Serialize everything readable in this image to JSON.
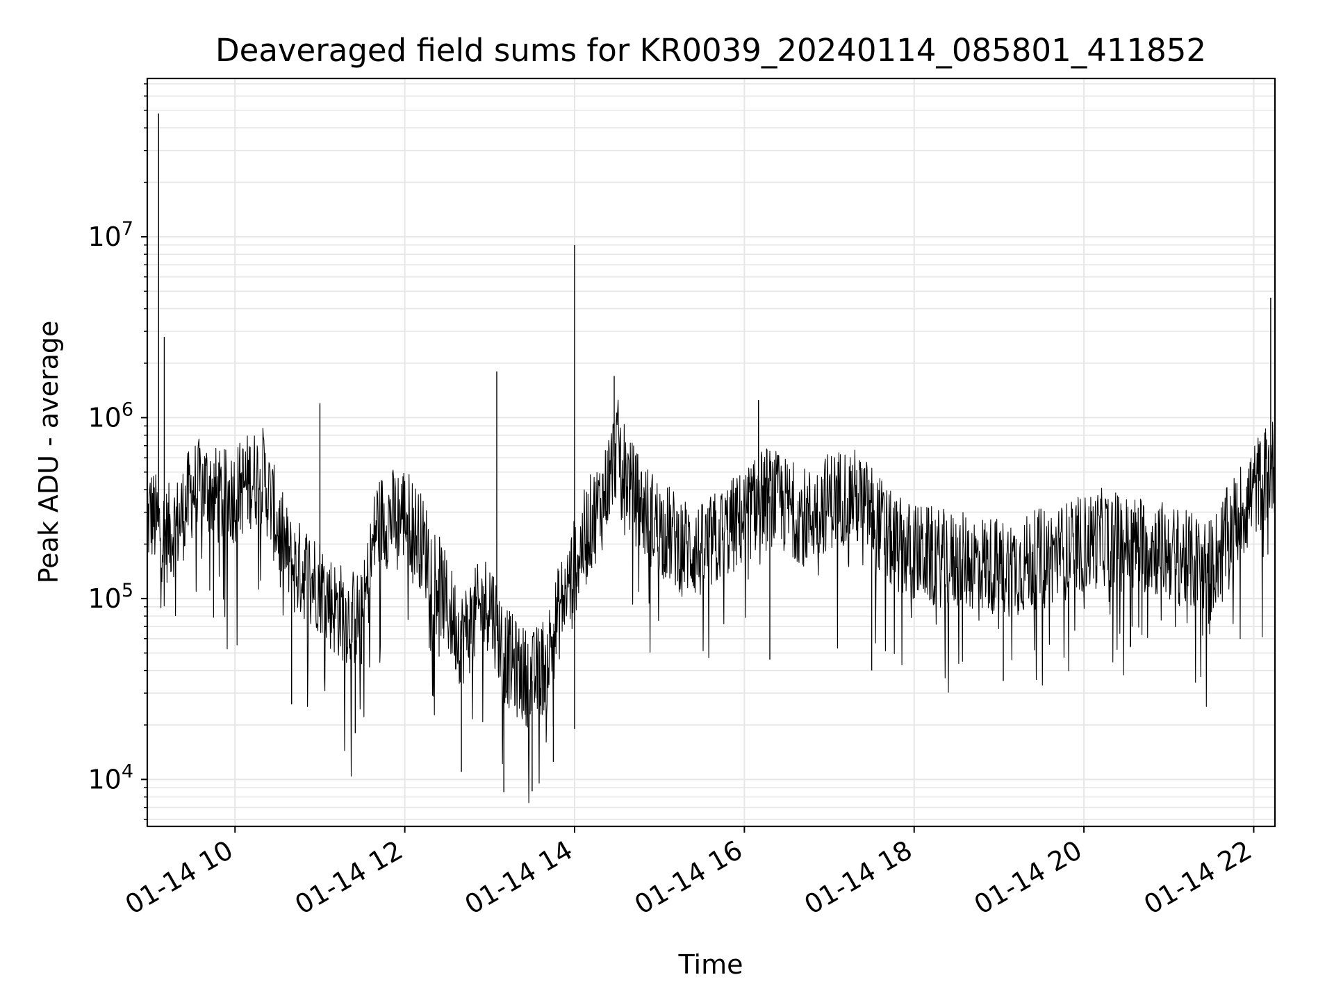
{
  "chart_data": {
    "type": "line",
    "title": "Deaveraged field sums for KR0039_20240114_085801_411852",
    "xlabel": "Time",
    "ylabel": "Peak ADU - average",
    "yscale": "log",
    "ylim": [
      5500,
      75000000
    ],
    "xlim": [
      "01-14 08:58",
      "01-14 22:15"
    ],
    "grid": true,
    "x_ticks": [
      "01-14 10",
      "01-14 12",
      "01-14 14",
      "01-14 16",
      "01-14 18",
      "01-14 20",
      "01-14 22"
    ],
    "x_tick_times": [
      "01-14 10:00",
      "01-14 12:00",
      "01-14 14:00",
      "01-14 16:00",
      "01-14 18:00",
      "01-14 20:00",
      "01-14 22:00"
    ],
    "y_ticks": [
      {
        "base": "10",
        "exp": "4",
        "value": 10000
      },
      {
        "base": "10",
        "exp": "5",
        "value": 100000
      },
      {
        "base": "10",
        "exp": "6",
        "value": 1000000
      },
      {
        "base": "10",
        "exp": "7",
        "value": 10000000
      }
    ],
    "series": [
      {
        "color": "#000000",
        "x": [
          "01-14 08:58",
          "01-14 09:00",
          "01-14 09:10",
          "01-14 09:20",
          "01-14 09:30",
          "01-14 09:40",
          "01-14 09:50",
          "01-14 10:00",
          "01-14 10:10",
          "01-14 10:20",
          "01-14 10:30",
          "01-14 10:40",
          "01-14 10:50",
          "01-14 11:00",
          "01-14 11:10",
          "01-14 11:20",
          "01-14 11:30",
          "01-14 11:40",
          "01-14 11:50",
          "01-14 12:00",
          "01-14 12:10",
          "01-14 12:20",
          "01-14 12:30",
          "01-14 12:40",
          "01-14 12:50",
          "01-14 13:00",
          "01-14 13:10",
          "01-14 13:20",
          "01-14 13:30",
          "01-14 13:40",
          "01-14 13:50",
          "01-14 14:00",
          "01-14 14:10",
          "01-14 14:20",
          "01-14 14:30",
          "01-14 14:40",
          "01-14 14:50",
          "01-14 15:00",
          "01-14 15:15",
          "01-14 15:30",
          "01-14 15:45",
          "01-14 16:00",
          "01-14 16:15",
          "01-14 16:30",
          "01-14 16:45",
          "01-14 17:00",
          "01-14 17:15",
          "01-14 17:30",
          "01-14 17:45",
          "01-14 18:00",
          "01-14 18:15",
          "01-14 18:30",
          "01-14 18:45",
          "01-14 19:00",
          "01-14 19:15",
          "01-14 19:30",
          "01-14 19:45",
          "01-14 20:00",
          "01-14 20:15",
          "01-14 20:30",
          "01-14 20:45",
          "01-14 21:00",
          "01-14 21:15",
          "01-14 21:30",
          "01-14 21:45",
          "01-14 22:00",
          "01-14 22:10",
          "01-14 22:15"
        ],
        "y": [
          250000,
          300000,
          220000,
          260000,
          400000,
          420000,
          350000,
          380000,
          450000,
          480000,
          250000,
          150000,
          140000,
          120000,
          90000,
          80000,
          75000,
          260000,
          280000,
          300000,
          220000,
          150000,
          90000,
          60000,
          80000,
          100000,
          50000,
          40000,
          35000,
          45000,
          90000,
          150000,
          250000,
          350000,
          700000,
          400000,
          300000,
          250000,
          200000,
          180000,
          230000,
          280000,
          380000,
          320000,
          280000,
          350000,
          380000,
          300000,
          200000,
          180000,
          170000,
          160000,
          160000,
          150000,
          150000,
          170000,
          180000,
          200000,
          220000,
          200000,
          200000,
          180000,
          160000,
          150000,
          250000,
          400000,
          500000,
          550000
        ]
      }
    ],
    "spikes": [
      {
        "x": "01-14 09:06",
        "y": 48000000
      },
      {
        "x": "01-14 09:10",
        "y": 2800000
      },
      {
        "x": "01-14 11:00",
        "y": 1200000
      },
      {
        "x": "01-14 13:05",
        "y": 1800000
      },
      {
        "x": "01-14 14:00",
        "y": 9000000
      },
      {
        "x": "01-14 14:28",
        "y": 1700000
      },
      {
        "x": "01-14 16:10",
        "y": 1250000
      },
      {
        "x": "01-14 22:12",
        "y": 4600000
      }
    ],
    "dips": [
      {
        "x": "01-14 10:40",
        "y": 26000
      },
      {
        "x": "01-14 11:25",
        "y": 18000
      },
      {
        "x": "01-14 12:40",
        "y": 11000
      },
      {
        "x": "01-14 13:10",
        "y": 8500
      },
      {
        "x": "01-14 13:30",
        "y": 8600
      },
      {
        "x": "01-14 13:45",
        "y": 12500
      },
      {
        "x": "01-14 14:00",
        "y": 19000
      },
      {
        "x": "01-14 16:18",
        "y": 46000
      },
      {
        "x": "01-14 17:30",
        "y": 40000
      },
      {
        "x": "01-14 19:03",
        "y": 35000
      }
    ]
  }
}
